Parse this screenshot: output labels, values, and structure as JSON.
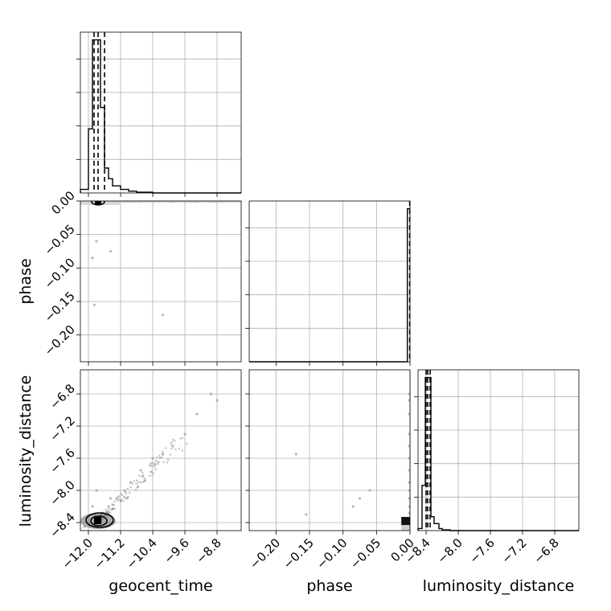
{
  "chart_data": {
    "type": "corner",
    "parameters": [
      "geocent_time",
      "phase",
      "luminosity_distance"
    ],
    "axis_labels": {
      "bottom": [
        "geocent_time",
        "phase",
        "luminosity_distance"
      ],
      "left": [
        "phase",
        "luminosity_distance"
      ]
    },
    "ranges": {
      "geocent_time": [
        -12.2,
        -8.2
      ],
      "phase": [
        -0.24,
        0.0
      ],
      "luminosity_distance": [
        -8.5,
        -6.5
      ]
    },
    "ticks": {
      "geocent_time": [
        -12.0,
        -11.2,
        -10.4,
        -9.6,
        -8.8
      ],
      "phase": [
        -0.2,
        -0.15,
        -0.1,
        -0.05,
        0.0
      ],
      "luminosity_distance": [
        -8.4,
        -8.0,
        -7.6,
        -7.2,
        -6.8
      ]
    },
    "tick_labels": {
      "geocent_time": [
        "−12.0",
        "−11.2",
        "−10.4",
        "−9.6",
        "−8.8"
      ],
      "phase": [
        "−0.20",
        "−0.15",
        "−0.10",
        "−0.05",
        "0.00"
      ],
      "luminosity_distance": [
        "−8.4",
        "−8.0",
        "−7.6",
        "−7.2",
        "−6.8"
      ]
    },
    "diag_yticks_count": 4,
    "grid": true,
    "histograms": {
      "geocent_time": {
        "edges": [
          -12.2,
          -12.0,
          -11.9,
          -11.8,
          -11.7,
          -11.6,
          -11.5,
          -11.4,
          -11.2,
          -11.0,
          -10.8,
          -10.4,
          -8.2
        ],
        "counts": [
          1,
          18,
          43,
          43,
          24,
          7,
          4,
          2,
          1,
          0.5,
          0.2,
          0
        ]
      },
      "phase": {
        "edges": [
          -0.24,
          -0.004,
          0.0
        ],
        "counts": [
          0,
          24
        ]
      },
      "luminosity_distance": {
        "edges": [
          -8.5,
          -8.45,
          -8.41,
          -8.38,
          -8.34,
          -8.3,
          -8.24,
          -8.2,
          -8.1,
          -6.5
        ],
        "counts": [
          0.3,
          6.5,
          22,
          22,
          2,
          1,
          0.3,
          0.1,
          0
        ]
      }
    },
    "quantiles": {
      "geocent_time": [
        -11.86,
        -11.76,
        -11.6
      ],
      "phase": [
        -0.0005
      ],
      "luminosity_distance": [
        -8.4,
        -8.38,
        -8.35
      ]
    },
    "samples": [
      {
        "geocent_time": -11.8,
        "phase": -0.06,
        "luminosity_distance": -8.0
      },
      {
        "geocent_time": -11.9,
        "phase": -0.085,
        "luminosity_distance": -8.2
      },
      {
        "geocent_time": -11.45,
        "phase": -0.075,
        "luminosity_distance": -8.1
      },
      {
        "geocent_time": -11.85,
        "phase": -0.155,
        "luminosity_distance": -8.3
      },
      {
        "geocent_time": -10.15,
        "phase": -0.17,
        "luminosity_distance": -7.55
      },
      {
        "geocent_time": -8.95,
        "phase": -0.001,
        "luminosity_distance": -6.8
      },
      {
        "geocent_time": -8.8,
        "phase": -0.001,
        "luminosity_distance": -6.88
      },
      {
        "geocent_time": -9.3,
        "phase": -0.001,
        "luminosity_distance": -7.05
      },
      {
        "geocent_time": -9.6,
        "phase": -0.001,
        "luminosity_distance": -7.3
      },
      {
        "geocent_time": -9.9,
        "phase": -0.001,
        "luminosity_distance": -7.45
      },
      {
        "geocent_time": -10.4,
        "phase": -0.001,
        "luminosity_distance": -7.6
      },
      {
        "geocent_time": -10.7,
        "phase": -0.001,
        "luminosity_distance": -7.75
      },
      {
        "geocent_time": -10.95,
        "phase": -0.001,
        "luminosity_distance": -7.9
      },
      {
        "geocent_time": -11.1,
        "phase": -0.001,
        "luminosity_distance": -8.0
      },
      {
        "geocent_time": -11.3,
        "phase": -0.001,
        "luminosity_distance": -8.1
      },
      {
        "geocent_time": -11.5,
        "phase": -0.001,
        "luminosity_distance": -8.2
      },
      {
        "geocent_time": -11.65,
        "phase": -0.001,
        "luminosity_distance": -8.28
      },
      {
        "geocent_time": -12.0,
        "phase": -0.001,
        "luminosity_distance": -8.42
      },
      {
        "geocent_time": -12.1,
        "phase": -0.001,
        "luminosity_distance": -8.45
      },
      {
        "geocent_time": -11.4,
        "phase": -0.001,
        "luminosity_distance": -8.4
      }
    ],
    "density_peaks": {
      "geocent_time_phase": {
        "geocent_time": -11.76,
        "phase": -0.001
      },
      "geocent_time_luminosity_distance": {
        "geocent_time": -11.76,
        "luminosity_distance": -8.38
      },
      "phase_luminosity_distance": {
        "phase": -0.001,
        "luminosity_distance": -8.38
      }
    }
  }
}
